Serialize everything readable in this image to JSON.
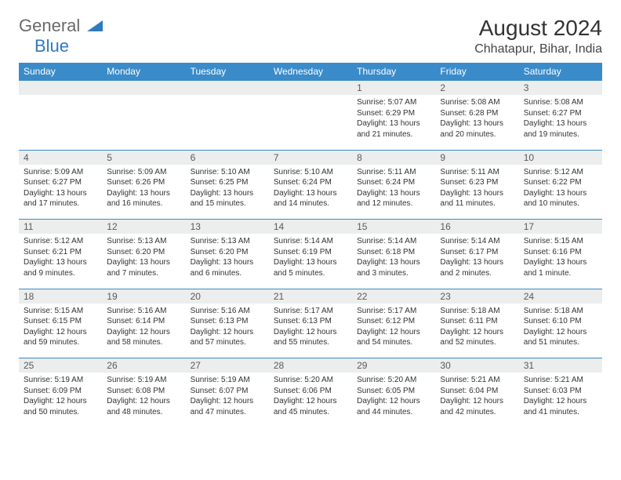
{
  "logo": {
    "text1": "General",
    "text2": "Blue"
  },
  "title": "August 2024",
  "location": "Chhatapur, Bihar, India",
  "colors": {
    "header_bg": "#3a8bc9",
    "header_text": "#ffffff",
    "daynum_bg": "#eceded",
    "border": "#3a8bc9",
    "logo_gray": "#6a6a6a",
    "logo_blue": "#2f7ac0"
  },
  "weekdays": [
    "Sunday",
    "Monday",
    "Tuesday",
    "Wednesday",
    "Thursday",
    "Friday",
    "Saturday"
  ],
  "weeks": [
    [
      null,
      null,
      null,
      null,
      {
        "n": "1",
        "sr": "Sunrise: 5:07 AM",
        "ss": "Sunset: 6:29 PM",
        "dl1": "Daylight: 13 hours",
        "dl2": "and 21 minutes."
      },
      {
        "n": "2",
        "sr": "Sunrise: 5:08 AM",
        "ss": "Sunset: 6:28 PM",
        "dl1": "Daylight: 13 hours",
        "dl2": "and 20 minutes."
      },
      {
        "n": "3",
        "sr": "Sunrise: 5:08 AM",
        "ss": "Sunset: 6:27 PM",
        "dl1": "Daylight: 13 hours",
        "dl2": "and 19 minutes."
      }
    ],
    [
      {
        "n": "4",
        "sr": "Sunrise: 5:09 AM",
        "ss": "Sunset: 6:27 PM",
        "dl1": "Daylight: 13 hours",
        "dl2": "and 17 minutes."
      },
      {
        "n": "5",
        "sr": "Sunrise: 5:09 AM",
        "ss": "Sunset: 6:26 PM",
        "dl1": "Daylight: 13 hours",
        "dl2": "and 16 minutes."
      },
      {
        "n": "6",
        "sr": "Sunrise: 5:10 AM",
        "ss": "Sunset: 6:25 PM",
        "dl1": "Daylight: 13 hours",
        "dl2": "and 15 minutes."
      },
      {
        "n": "7",
        "sr": "Sunrise: 5:10 AM",
        "ss": "Sunset: 6:24 PM",
        "dl1": "Daylight: 13 hours",
        "dl2": "and 14 minutes."
      },
      {
        "n": "8",
        "sr": "Sunrise: 5:11 AM",
        "ss": "Sunset: 6:24 PM",
        "dl1": "Daylight: 13 hours",
        "dl2": "and 12 minutes."
      },
      {
        "n": "9",
        "sr": "Sunrise: 5:11 AM",
        "ss": "Sunset: 6:23 PM",
        "dl1": "Daylight: 13 hours",
        "dl2": "and 11 minutes."
      },
      {
        "n": "10",
        "sr": "Sunrise: 5:12 AM",
        "ss": "Sunset: 6:22 PM",
        "dl1": "Daylight: 13 hours",
        "dl2": "and 10 minutes."
      }
    ],
    [
      {
        "n": "11",
        "sr": "Sunrise: 5:12 AM",
        "ss": "Sunset: 6:21 PM",
        "dl1": "Daylight: 13 hours",
        "dl2": "and 9 minutes."
      },
      {
        "n": "12",
        "sr": "Sunrise: 5:13 AM",
        "ss": "Sunset: 6:20 PM",
        "dl1": "Daylight: 13 hours",
        "dl2": "and 7 minutes."
      },
      {
        "n": "13",
        "sr": "Sunrise: 5:13 AM",
        "ss": "Sunset: 6:20 PM",
        "dl1": "Daylight: 13 hours",
        "dl2": "and 6 minutes."
      },
      {
        "n": "14",
        "sr": "Sunrise: 5:14 AM",
        "ss": "Sunset: 6:19 PM",
        "dl1": "Daylight: 13 hours",
        "dl2": "and 5 minutes."
      },
      {
        "n": "15",
        "sr": "Sunrise: 5:14 AM",
        "ss": "Sunset: 6:18 PM",
        "dl1": "Daylight: 13 hours",
        "dl2": "and 3 minutes."
      },
      {
        "n": "16",
        "sr": "Sunrise: 5:14 AM",
        "ss": "Sunset: 6:17 PM",
        "dl1": "Daylight: 13 hours",
        "dl2": "and 2 minutes."
      },
      {
        "n": "17",
        "sr": "Sunrise: 5:15 AM",
        "ss": "Sunset: 6:16 PM",
        "dl1": "Daylight: 13 hours",
        "dl2": "and 1 minute."
      }
    ],
    [
      {
        "n": "18",
        "sr": "Sunrise: 5:15 AM",
        "ss": "Sunset: 6:15 PM",
        "dl1": "Daylight: 12 hours",
        "dl2": "and 59 minutes."
      },
      {
        "n": "19",
        "sr": "Sunrise: 5:16 AM",
        "ss": "Sunset: 6:14 PM",
        "dl1": "Daylight: 12 hours",
        "dl2": "and 58 minutes."
      },
      {
        "n": "20",
        "sr": "Sunrise: 5:16 AM",
        "ss": "Sunset: 6:13 PM",
        "dl1": "Daylight: 12 hours",
        "dl2": "and 57 minutes."
      },
      {
        "n": "21",
        "sr": "Sunrise: 5:17 AM",
        "ss": "Sunset: 6:13 PM",
        "dl1": "Daylight: 12 hours",
        "dl2": "and 55 minutes."
      },
      {
        "n": "22",
        "sr": "Sunrise: 5:17 AM",
        "ss": "Sunset: 6:12 PM",
        "dl1": "Daylight: 12 hours",
        "dl2": "and 54 minutes."
      },
      {
        "n": "23",
        "sr": "Sunrise: 5:18 AM",
        "ss": "Sunset: 6:11 PM",
        "dl1": "Daylight: 12 hours",
        "dl2": "and 52 minutes."
      },
      {
        "n": "24",
        "sr": "Sunrise: 5:18 AM",
        "ss": "Sunset: 6:10 PM",
        "dl1": "Daylight: 12 hours",
        "dl2": "and 51 minutes."
      }
    ],
    [
      {
        "n": "25",
        "sr": "Sunrise: 5:19 AM",
        "ss": "Sunset: 6:09 PM",
        "dl1": "Daylight: 12 hours",
        "dl2": "and 50 minutes."
      },
      {
        "n": "26",
        "sr": "Sunrise: 5:19 AM",
        "ss": "Sunset: 6:08 PM",
        "dl1": "Daylight: 12 hours",
        "dl2": "and 48 minutes."
      },
      {
        "n": "27",
        "sr": "Sunrise: 5:19 AM",
        "ss": "Sunset: 6:07 PM",
        "dl1": "Daylight: 12 hours",
        "dl2": "and 47 minutes."
      },
      {
        "n": "28",
        "sr": "Sunrise: 5:20 AM",
        "ss": "Sunset: 6:06 PM",
        "dl1": "Daylight: 12 hours",
        "dl2": "and 45 minutes."
      },
      {
        "n": "29",
        "sr": "Sunrise: 5:20 AM",
        "ss": "Sunset: 6:05 PM",
        "dl1": "Daylight: 12 hours",
        "dl2": "and 44 minutes."
      },
      {
        "n": "30",
        "sr": "Sunrise: 5:21 AM",
        "ss": "Sunset: 6:04 PM",
        "dl1": "Daylight: 12 hours",
        "dl2": "and 42 minutes."
      },
      {
        "n": "31",
        "sr": "Sunrise: 5:21 AM",
        "ss": "Sunset: 6:03 PM",
        "dl1": "Daylight: 12 hours",
        "dl2": "and 41 minutes."
      }
    ]
  ]
}
